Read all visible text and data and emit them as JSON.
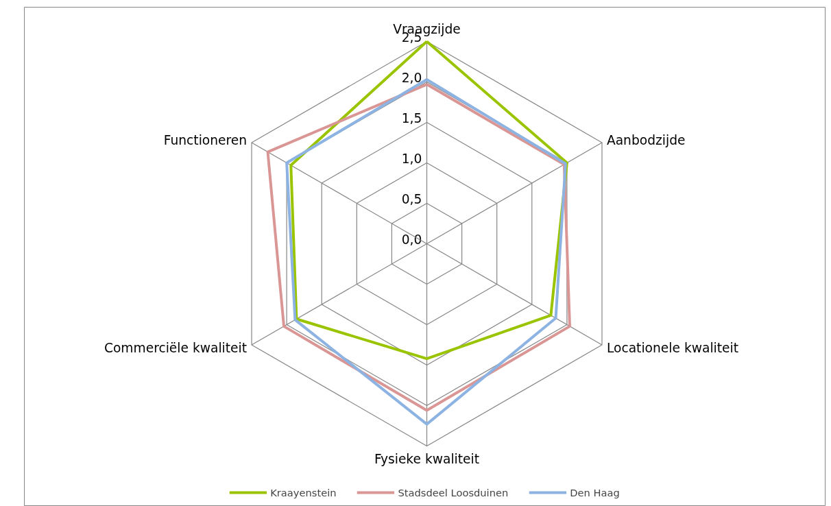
{
  "chart_data": {
    "type": "radar",
    "categories": [
      "Vraagzijde",
      "Aanbodzijde",
      "Locationele kwaliteit",
      "Fysieke kwaliteit",
      "Commerciële kwaliteit",
      "Functioneren"
    ],
    "series": [
      {
        "name": "Kraayenstein",
        "color": "#9bc400",
        "values": [
          2.5,
          2.0,
          1.77,
          1.42,
          1.86,
          1.94
        ]
      },
      {
        "name": "Stadsdeel Loosduinen",
        "color": "#d99694",
        "values": [
          1.97,
          1.96,
          2.04,
          2.06,
          2.04,
          2.27
        ]
      },
      {
        "name": "Den Haag",
        "color": "#8db3e2",
        "values": [
          2.03,
          1.98,
          1.84,
          2.23,
          1.88,
          2.0
        ]
      }
    ],
    "ylim": [
      0,
      2.5
    ],
    "yticks": [
      {
        "value": 0,
        "label": "0,0"
      },
      {
        "value": 0.5,
        "label": "0,5"
      },
      {
        "value": 1,
        "label": "1,0"
      },
      {
        "value": 1.5,
        "label": "1,5"
      },
      {
        "value": 2,
        "label": "2,0"
      },
      {
        "value": 2.5,
        "label": "2,5"
      }
    ],
    "legend": "bottom"
  }
}
